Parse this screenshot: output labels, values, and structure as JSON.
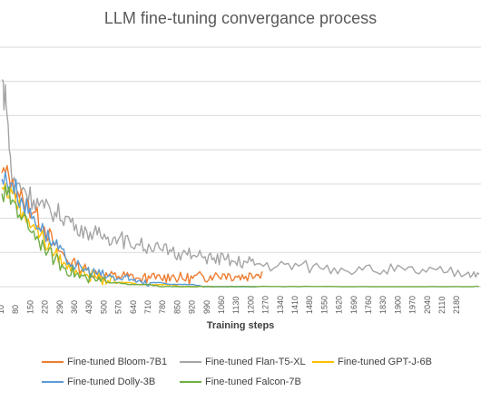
{
  "chart_data": {
    "type": "line",
    "title": "LLM fine-tuning convergance process",
    "xlabel": "Training steps",
    "ylabel": "",
    "x_ticks": [
      "10",
      "80",
      "150",
      "220",
      "290",
      "360",
      "430",
      "500",
      "570",
      "640",
      "710",
      "780",
      "850",
      "920",
      "990",
      "1060",
      "1130",
      "1200",
      "1270",
      "1340",
      "1410",
      "1480",
      "1550",
      "1620",
      "1690",
      "1760",
      "1830",
      "1900",
      "1970",
      "2040",
      "2110",
      "2180"
    ],
    "x_range": [
      0,
      2250
    ],
    "y_range": [
      0,
      1
    ],
    "grid": true,
    "legend_position": "bottom",
    "series": [
      {
        "name": "Fine-tuned Bloom-7B1",
        "color": "#ED7D31",
        "x": [
          0,
          50,
          100,
          150,
          200,
          250,
          300,
          350,
          400,
          450,
          500,
          550,
          600,
          650,
          700,
          750,
          800,
          850,
          900,
          950,
          1000,
          1050,
          1100,
          1150,
          1200,
          1230
        ],
        "y": [
          0.55,
          0.52,
          0.42,
          0.36,
          0.29,
          0.2,
          0.14,
          0.1,
          0.08,
          0.06,
          0.05,
          0.05,
          0.05,
          0.04,
          0.04,
          0.04,
          0.05,
          0.04,
          0.04,
          0.05,
          0.05,
          0.06,
          0.05,
          0.05,
          0.06,
          0.07
        ]
      },
      {
        "name": "Fine-tuned Flan-T5-XL",
        "color": "#A5A5A5",
        "x": [
          0,
          20,
          50,
          100,
          150,
          200,
          250,
          300,
          350,
          400,
          450,
          500,
          550,
          600,
          650,
          700,
          750,
          800,
          850,
          900,
          950,
          1000,
          1050,
          1100,
          1150,
          1200,
          1300,
          1400,
          1500,
          1600,
          1700,
          1800,
          1900,
          2000,
          2100,
          2200,
          2250
        ],
        "y": [
          1,
          0.88,
          0.5,
          0.48,
          0.42,
          0.38,
          0.36,
          0.34,
          0.3,
          0.27,
          0.25,
          0.24,
          0.23,
          0.22,
          0.2,
          0.19,
          0.18,
          0.17,
          0.16,
          0.15,
          0.14,
          0.14,
          0.13,
          0.12,
          0.12,
          0.11,
          0.1,
          0.1,
          0.09,
          0.09,
          0.08,
          0.08,
          0.08,
          0.07,
          0.07,
          0.07,
          0.06
        ]
      },
      {
        "name": "Fine-tuned GPT-J-6B",
        "color": "#FFC000",
        "x": [
          0,
          50,
          100,
          150,
          200,
          250,
          300,
          350,
          400,
          450,
          500,
          550,
          600,
          650,
          700,
          750,
          800,
          850,
          900,
          950,
          1000
        ],
        "y": [
          0.48,
          0.45,
          0.36,
          0.3,
          0.22,
          0.16,
          0.11,
          0.08,
          0.06,
          0.04,
          0.03,
          0.02,
          0.02,
          0.01,
          0.01,
          0.01,
          0.01,
          0.0,
          0.0,
          0.0,
          0.0
        ]
      },
      {
        "name": "Fine-tuned Dolly-3B",
        "color": "#5B9BD5",
        "x": [
          0,
          50,
          100,
          150,
          200,
          250,
          300,
          350,
          400,
          450,
          500,
          550,
          600,
          650,
          700,
          750,
          800,
          850,
          900,
          950,
          1000,
          1100,
          1200
        ],
        "y": [
          0.52,
          0.5,
          0.4,
          0.34,
          0.26,
          0.2,
          0.14,
          0.1,
          0.08,
          0.06,
          0.05,
          0.04,
          0.03,
          0.03,
          0.02,
          0.02,
          0.01,
          0.01,
          0.01,
          0.0,
          0.0,
          0.0,
          0.0
        ]
      },
      {
        "name": "Fine-tuned Falcon-7B",
        "color": "#70AD47",
        "x": [
          0,
          50,
          100,
          150,
          200,
          250,
          300,
          350,
          400,
          450,
          500,
          550,
          600,
          650,
          700,
          750,
          800,
          900,
          1000,
          1200,
          1400,
          1600,
          1800,
          2000,
          2200,
          2250
        ],
        "y": [
          0.45,
          0.42,
          0.34,
          0.27,
          0.19,
          0.13,
          0.09,
          0.06,
          0.04,
          0.03,
          0.02,
          0.02,
          0.01,
          0.01,
          0.01,
          0.0,
          0.0,
          0.0,
          0.0,
          0.0,
          0.0,
          0.0,
          0.0,
          0.0,
          0.0,
          0.0
        ]
      }
    ]
  }
}
